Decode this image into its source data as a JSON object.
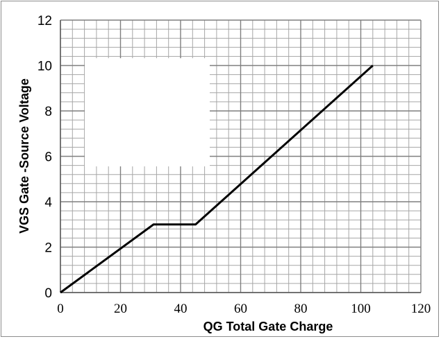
{
  "chart_data": {
    "type": "line",
    "title": "",
    "xlabel": "QG Total Gate Charge",
    "ylabel": "VGS  Gate -Source Voltage",
    "xlim": [
      0,
      120
    ],
    "ylim": [
      0,
      12
    ],
    "x_ticks": [
      0,
      20,
      40,
      60,
      80,
      100,
      120
    ],
    "y_ticks": [
      0,
      2,
      4,
      6,
      8,
      10,
      12
    ],
    "grid": true,
    "minor_grid_divisions": 5,
    "series": [
      {
        "x": [
          0,
          31,
          45,
          104
        ],
        "y": [
          0,
          3,
          3,
          10
        ],
        "color": "#000000"
      }
    ]
  }
}
